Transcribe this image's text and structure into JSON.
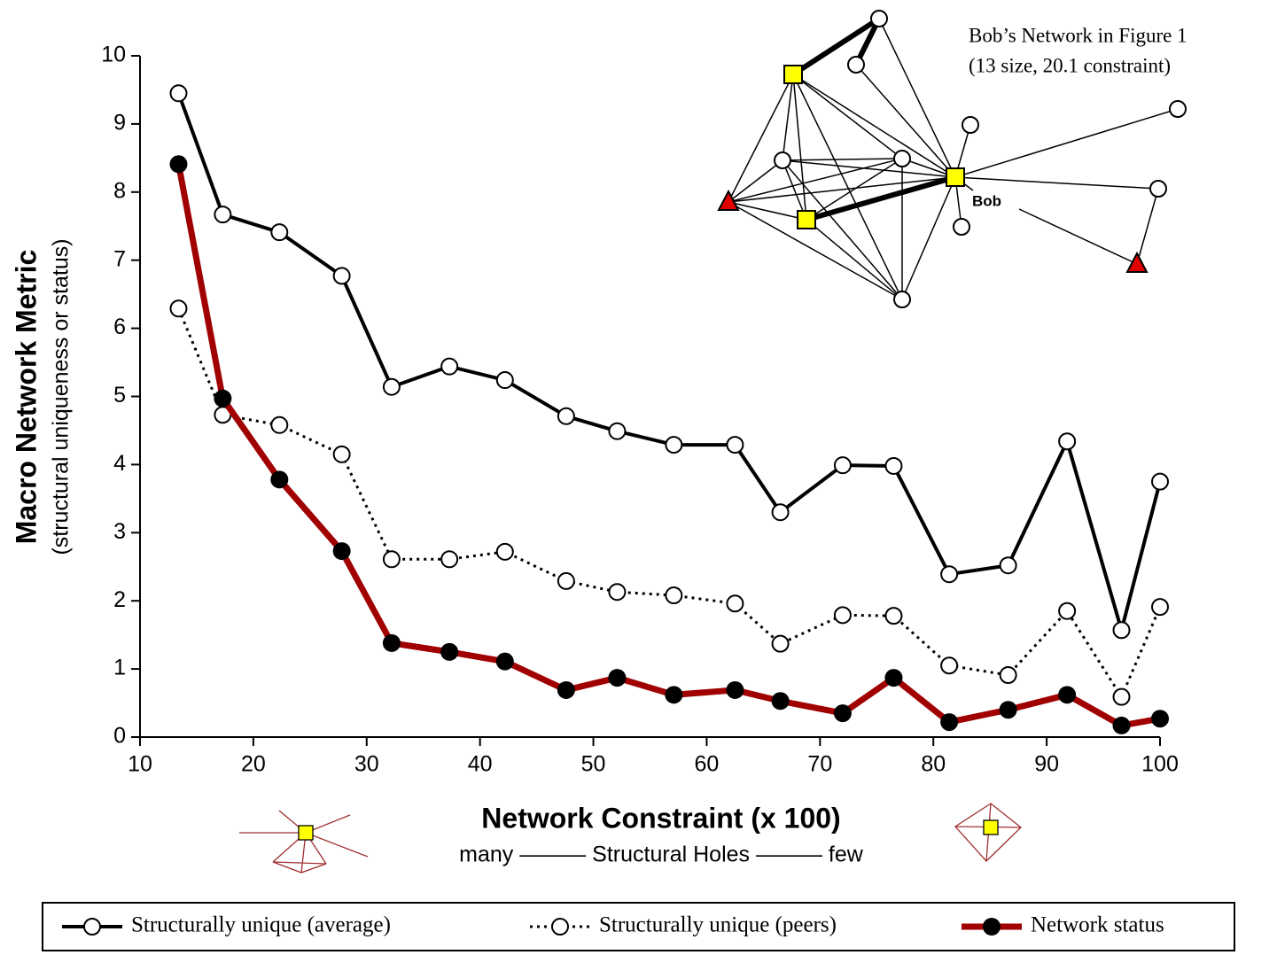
{
  "chart_data": {
    "type": "line",
    "xlabel": "Network Constraint (x 100)",
    "xlabel_sub": "many ——— Structural Holes ——— few",
    "ylabel": "Macro Network Metric",
    "ylabel_sub": "(structural uniqueness or status)",
    "inset_title": [
      "Bob’s Network in Figure 1",
      "(13 size, 20.1 constraint)"
    ],
    "inset_node_label": "Bob",
    "x": [
      13.4,
      17.3,
      22.3,
      27.8,
      32.2,
      37.3,
      42.2,
      47.6,
      52.1,
      57.1,
      62.5,
      66.5,
      72.0,
      76.5,
      81.4,
      86.6,
      91.8,
      96.6,
      100
    ],
    "series": [
      {
        "name": "Structurally unique (average)",
        "color": "#000000",
        "line_style": "solid",
        "marker": "open",
        "values": [
          9.45,
          7.67,
          7.41,
          6.77,
          5.14,
          5.44,
          5.24,
          4.71,
          4.49,
          4.29,
          4.29,
          3.3,
          3.99,
          3.98,
          2.39,
          2.52,
          4.34,
          1.57,
          3.75
        ]
      },
      {
        "name": "Structurally unique (peers)",
        "color": "#000000",
        "line_style": "dotted",
        "marker": "open",
        "values": [
          6.29,
          4.73,
          4.58,
          4.15,
          2.61,
          2.61,
          2.72,
          2.29,
          2.13,
          2.08,
          1.96,
          1.37,
          1.79,
          1.78,
          1.05,
          0.91,
          1.85,
          0.59,
          1.91
        ]
      },
      {
        "name": "Network status",
        "color": "#a00000",
        "line_style": "thick",
        "marker": "filled",
        "values": [
          8.41,
          4.97,
          3.78,
          2.73,
          1.38,
          1.25,
          1.11,
          0.69,
          0.87,
          0.62,
          0.69,
          0.53,
          0.35,
          0.87,
          0.22,
          0.4,
          0.62,
          0.17,
          0.27
        ]
      }
    ],
    "xlim": [
      10,
      100
    ],
    "xticks": [
      10,
      20,
      30,
      40,
      50,
      60,
      70,
      80,
      90,
      100
    ],
    "ylim": [
      0,
      10
    ],
    "yticks": [
      0,
      1,
      2,
      3,
      4,
      5,
      6,
      7,
      8,
      9,
      10
    ],
    "grid": false,
    "legend": "bottom"
  }
}
